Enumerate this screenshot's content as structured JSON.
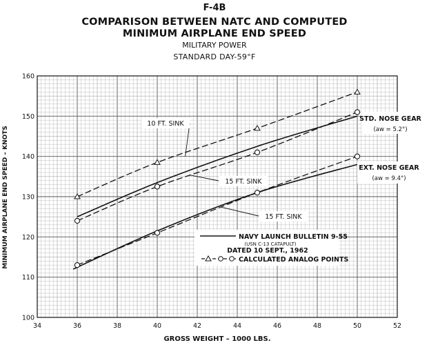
{
  "header": {
    "code": "F-4B",
    "title_line1": "COMPARISON BETWEEN NATC AND COMPUTED",
    "title_line2": "MINIMUM AIRPLANE END SPEED",
    "subtitle1": "MILITARY POWER",
    "subtitle2": "STANDARD DAY-59°F"
  },
  "chart_data": {
    "type": "line",
    "xlabel": "GROSS WEIGHT – 1000 LBS.",
    "ylabel": "MINIMUM AIRPLANE END SPEED – KNOTS",
    "xlim": [
      34,
      52
    ],
    "ylim": [
      100,
      160
    ],
    "x_ticks": [
      34,
      36,
      38,
      40,
      42,
      44,
      46,
      48,
      50,
      52
    ],
    "y_ticks": [
      100,
      110,
      120,
      130,
      140,
      150,
      160
    ],
    "grid": true,
    "series": [
      {
        "name": "STD. NOSE GEAR – 10 FT. SINK (calculated)",
        "style": "dashed",
        "marker": "triangle",
        "x": [
          36,
          40,
          45,
          50
        ],
        "y": [
          130,
          138.5,
          147,
          156
        ]
      },
      {
        "name": "STD. NOSE GEAR – NAVY LAUNCH BULLETIN 9-55",
        "style": "solid",
        "marker": "none",
        "x": [
          36,
          40,
          45,
          50
        ],
        "y": [
          125,
          133.5,
          142.5,
          150
        ]
      },
      {
        "name": "STD. NOSE GEAR – 15 FT. SINK (calculated)",
        "style": "dashed",
        "marker": "circle",
        "x": [
          36,
          40,
          45,
          50
        ],
        "y": [
          124,
          132.5,
          141,
          151
        ]
      },
      {
        "name": "EXT. NOSE GEAR – NAVY LAUNCH BULLETIN 9-55",
        "style": "solid",
        "marker": "none",
        "x": [
          35.8,
          40,
          45,
          50
        ],
        "y": [
          112,
          121.5,
          131,
          138
        ]
      },
      {
        "name": "EXT. NOSE GEAR – 15 FT. SINK (calculated)",
        "style": "dashed",
        "marker": "circle",
        "x": [
          36,
          40,
          45,
          50
        ],
        "y": [
          113,
          121,
          131,
          140
        ]
      }
    ],
    "annotations": {
      "sink10": "10 FT. SINK",
      "sink15_upper": "15 FT. SINK",
      "sink15_lower": "15 FT. SINK",
      "std_gear": "STD. NOSE GEAR",
      "std_gear_aw": "(aw = 5.2°)",
      "ext_gear": "EXT. NOSE GEAR",
      "ext_gear_aw": "(aw = 9.4°)"
    },
    "legend": {
      "line1": "NAVY LAUNCH BULLETIN 9-55",
      "line2": "(USN C-13 CATAPULT)",
      "line3": "DATED 10 SEPT., 1962",
      "line4": "CALCULATED ANALOG POINTS"
    }
  }
}
